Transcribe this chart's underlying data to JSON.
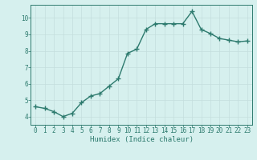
{
  "x": [
    0,
    1,
    2,
    3,
    4,
    5,
    6,
    7,
    8,
    9,
    10,
    11,
    12,
    13,
    14,
    15,
    16,
    17,
    18,
    19,
    20,
    21,
    22,
    23
  ],
  "y": [
    4.6,
    4.5,
    4.3,
    4.0,
    4.2,
    4.85,
    5.25,
    5.4,
    5.85,
    6.3,
    7.85,
    8.1,
    9.3,
    9.65,
    9.65,
    9.65,
    9.65,
    10.4,
    9.3,
    9.05,
    8.75,
    8.65,
    8.55,
    8.6
  ],
  "title": "",
  "xlabel": "Humidex (Indice chaleur)",
  "ylabel": "",
  "xlim": [
    -0.5,
    23.5
  ],
  "ylim": [
    3.5,
    10.8
  ],
  "yticks": [
    4,
    5,
    6,
    7,
    8,
    9,
    10
  ],
  "xticks": [
    0,
    1,
    2,
    3,
    4,
    5,
    6,
    7,
    8,
    9,
    10,
    11,
    12,
    13,
    14,
    15,
    16,
    17,
    18,
    19,
    20,
    21,
    22,
    23
  ],
  "line_color": "#2d7a6e",
  "marker_color": "#2d7a6e",
  "bg_color": "#d6f0ee",
  "grid_color": "#c4dedd",
  "axes_color": "#2d7a6e",
  "tick_label_color": "#2d7a6e",
  "xlabel_color": "#2d7a6e",
  "line_width": 1.0,
  "marker_size": 4,
  "tick_fontsize": 5.5,
  "xlabel_fontsize": 6.5
}
